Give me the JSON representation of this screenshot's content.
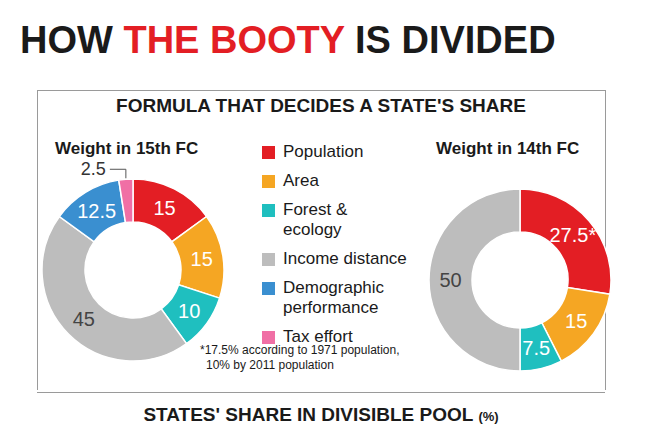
{
  "header": {
    "title_parts": [
      {
        "text": "HOW ",
        "color": "#1a1a1a"
      },
      {
        "text": "THE BOOTY",
        "color": "#e31e24"
      },
      {
        "text": " IS DIVIDED",
        "color": "#1a1a1a"
      }
    ],
    "subtitle": "FORMULA THAT DECIDES A STATE'S SHARE"
  },
  "chart_data": [
    {
      "type": "donut",
      "title": "Weight in 15th FC",
      "categories": [
        "Population",
        "Area",
        "Forest & ecology",
        "Income distance",
        "Demographic performance",
        "Tax effort"
      ],
      "values": [
        15,
        15,
        10,
        45,
        12.5,
        2.5
      ],
      "colors": [
        "#e31e24",
        "#f5a623",
        "#1fbfbf",
        "#bdbdbd",
        "#3a8fd0",
        "#f06fa5"
      ],
      "data_labels": true,
      "legend": "center"
    },
    {
      "type": "donut",
      "title": "Weight in 14th FC",
      "categories": [
        "Population",
        "Area",
        "Forest & ecology",
        "Income distance"
      ],
      "values": [
        27.5,
        15,
        7.5,
        50
      ],
      "value_labels": [
        "27.5*",
        "15",
        "7.5",
        "50"
      ],
      "colors": [
        "#e31e24",
        "#f5a623",
        "#1fbfbf",
        "#bdbdbd"
      ],
      "data_labels": true
    }
  ],
  "footnote": [
    "*17.5% according to 1971 population,",
    "10% by 2011 population"
  ],
  "footer": {
    "text": "STATES' SHARE IN DIVISIBLE POOL",
    "unit": "(%)"
  }
}
